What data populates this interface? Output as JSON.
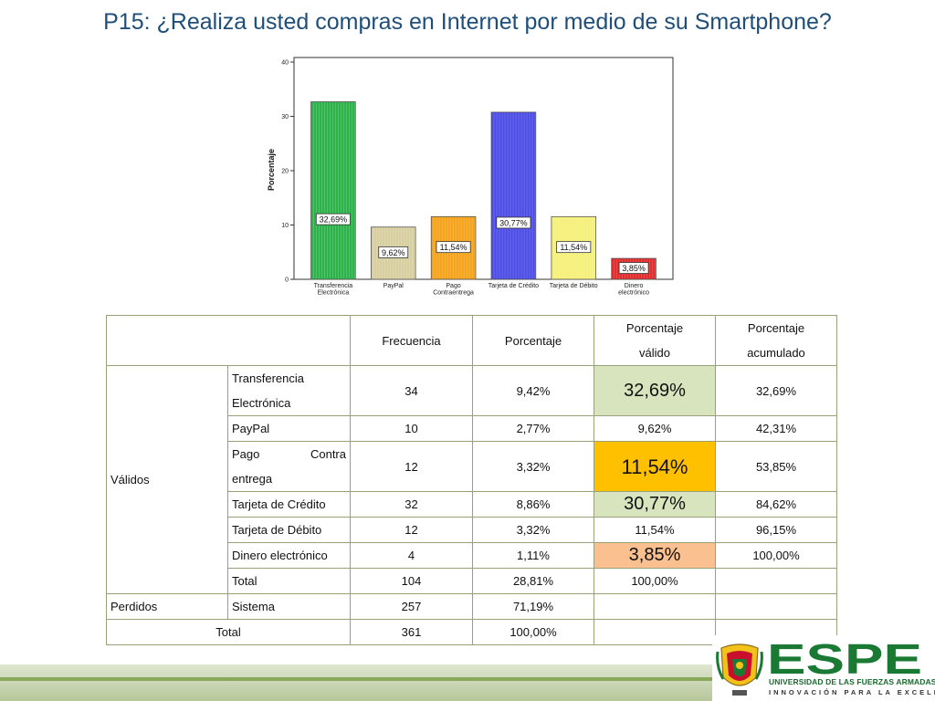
{
  "title": "P15: ¿Realiza usted compras en Internet por medio de su Smartphone?",
  "chart_data": {
    "type": "bar",
    "categories": [
      [
        "Transferencia",
        "Electrónica"
      ],
      [
        "PayPal"
      ],
      [
        "Pago",
        "Contraentrega"
      ],
      [
        "Tarjeta de Crédito"
      ],
      [
        "Tarjeta de Débito"
      ],
      [
        "Dinero",
        "electrónico"
      ]
    ],
    "values": [
      32.69,
      9.62,
      11.54,
      30.77,
      11.54,
      3.85
    ],
    "data_labels": [
      "32,69%",
      "9,62%",
      "11,54%",
      "30,77%",
      "11,54%",
      "3,85%"
    ],
    "colors": [
      "#2db34a",
      "#d8cfa0",
      "#f5a31a",
      "#4c4ce6",
      "#f5f07a",
      "#e22b2b"
    ],
    "ylabel": "Porcentaje",
    "ylim": [
      0,
      40
    ],
    "yticks": [
      "0",
      "10",
      "20",
      "30",
      "40"
    ],
    "legend": "none",
    "grid": false
  },
  "table": {
    "headers": {
      "frecuencia": "Frecuencia",
      "porcentaje": "Porcentaje",
      "valido_1": "Porcentaje",
      "valido_2": "válido",
      "acumulado_1": "Porcentaje",
      "acumulado_2": "acumulado"
    },
    "group_validos": "Válidos",
    "group_perdidos": "Perdidos",
    "total_label": "Total",
    "rows": [
      {
        "label_1": "Transferencia",
        "label_2": "Electrónica",
        "freq": "34",
        "pct": "9,42%",
        "valid": "32,69%",
        "cum": "32,69%"
      },
      {
        "label": "PayPal",
        "freq": "10",
        "pct": "2,77%",
        "valid": "9,62%",
        "cum": "42,31%"
      },
      {
        "label_a": "Pago",
        "label_b": "Contra",
        "label_2": "entrega",
        "freq": "12",
        "pct": "3,32%",
        "valid": "11,54%",
        "cum": "53,85%"
      },
      {
        "label": "Tarjeta de Crédito",
        "freq": "32",
        "pct": "8,86%",
        "valid": "30,77%",
        "cum": "84,62%"
      },
      {
        "label": "Tarjeta de Débito",
        "freq": "12",
        "pct": "3,32%",
        "valid": "11,54%",
        "cum": "96,15%"
      },
      {
        "label": "Dinero electrónico",
        "freq": "4",
        "pct": "1,11%",
        "valid": "3,85%",
        "cum": "100,00%"
      },
      {
        "label": "Total",
        "freq": "104",
        "pct": "28,81%",
        "valid": "100,00%",
        "cum": ""
      }
    ],
    "perdidos": {
      "label": "Sistema",
      "freq": "257",
      "pct": "71,19%"
    },
    "total": {
      "freq": "361",
      "pct": "100,00%"
    }
  },
  "logo": {
    "brand": "ESPE",
    "university": "UNIVERSIDAD DE LAS FUERZAS ARMADAS",
    "motto": "INNOVACIÓN PARA LA EXCELENCIA",
    "colors": {
      "green": "#1a7a34",
      "red": "#c8102e"
    }
  }
}
